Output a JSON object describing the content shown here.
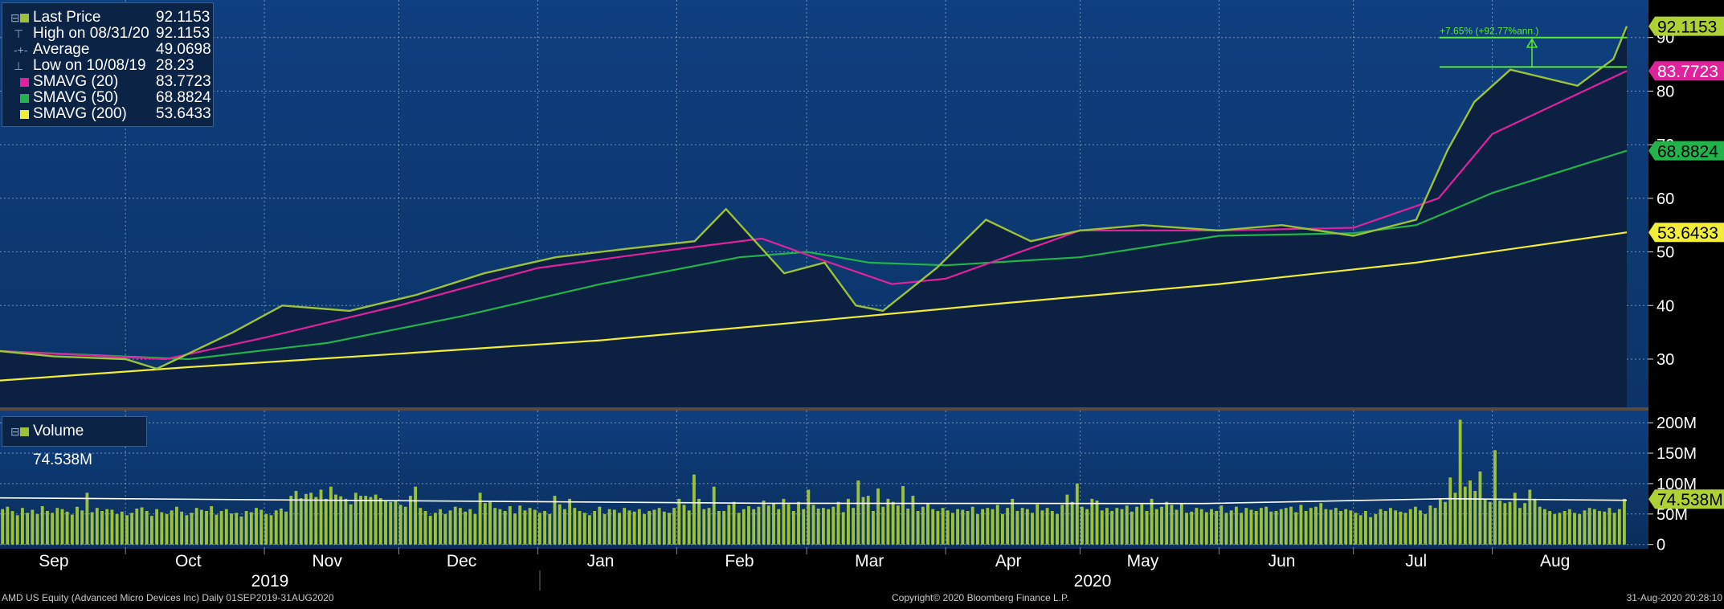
{
  "legend": {
    "items": [
      {
        "label": "Last Price",
        "value": "92.1153",
        "color": "#9cc23a",
        "marker": "box"
      },
      {
        "label": "High on 08/31/20",
        "value": "92.1153",
        "color": "",
        "marker": "high"
      },
      {
        "label": "Average",
        "value": "49.0698",
        "color": "",
        "marker": "avg"
      },
      {
        "label": "Low on 10/08/19",
        "value": "28.23",
        "color": "",
        "marker": "low"
      },
      {
        "label": "SMAVG (20)",
        "value": "83.7723",
        "color": "#e0239c",
        "marker": "box"
      },
      {
        "label": "SMAVG (50)",
        "value": "68.8824",
        "color": "#22b34a",
        "marker": "box"
      },
      {
        "label": "SMAVG (200)",
        "value": "53.6433",
        "color": "#f2ec3a",
        "marker": "box"
      }
    ]
  },
  "volume_legend": {
    "label": "Volume",
    "value": "74.538M"
  },
  "annotation": "+7.65% (+92.77%ann.)",
  "footer": {
    "left": "AMD US Equity (Advanced Micro Devices Inc)  Daily 01SEP2019-31AUG2020",
    "center": "Copyright© 2020 Bloomberg Finance L.P.",
    "right": "31-Aug-2020 20:28:10"
  },
  "colors": {
    "last": "#9cc23a",
    "sma20": "#e0239c",
    "sma50": "#22b34a",
    "sma200": "#f2ec3a",
    "volume": "#9cc23a",
    "volume_avg": "#ffffff"
  },
  "chart_data": [
    {
      "type": "line",
      "ylim": [
        21,
        97
      ],
      "y_ticks": [
        30,
        40,
        50,
        60,
        70,
        80,
        90
      ],
      "x_months": [
        "Sep",
        "Oct",
        "Nov",
        "Dec",
        "Jan",
        "Feb",
        "Mar",
        "Apr",
        "May",
        "Jun",
        "Jul",
        "Aug"
      ],
      "years": [
        "2019",
        "2020"
      ],
      "tag_values": [
        "92.1153",
        "83.7723",
        "68.8824",
        "53.6433"
      ],
      "series": [
        {
          "name": "Last Price",
          "x": [
            "2019-09-03",
            "2019-09-15",
            "2019-10-01",
            "2019-10-08",
            "2019-10-25",
            "2019-11-05",
            "2019-11-20",
            "2019-12-05",
            "2019-12-20",
            "2020-01-05",
            "2020-01-20",
            "2020-02-05",
            "2020-02-12",
            "2020-02-25",
            "2020-03-05",
            "2020-03-12",
            "2020-03-18",
            "2020-03-30",
            "2020-04-10",
            "2020-04-20",
            "2020-05-01",
            "2020-05-15",
            "2020-06-01",
            "2020-06-15",
            "2020-07-01",
            "2020-07-15",
            "2020-07-22",
            "2020-07-28",
            "2020-08-05",
            "2020-08-20",
            "2020-08-28",
            "2020-08-31"
          ],
          "y": [
            31.5,
            30.5,
            30.0,
            28.2,
            35.0,
            40.0,
            39.0,
            42.0,
            46.0,
            49.0,
            50.5,
            52.0,
            58.0,
            46.0,
            48.0,
            40.0,
            39.0,
            47.0,
            56.0,
            52.0,
            54.0,
            55.0,
            54.0,
            55.0,
            53.0,
            56.0,
            69.0,
            78.0,
            84.0,
            81.0,
            86.0,
            92.1153
          ]
        },
        {
          "name": "SMAVG (20)",
          "x": [
            "2019-09-03",
            "2019-10-10",
            "2019-11-01",
            "2019-12-01",
            "2020-01-01",
            "2020-02-01",
            "2020-02-20",
            "2020-03-01",
            "2020-03-20",
            "2020-04-01",
            "2020-05-01",
            "2020-06-01",
            "2020-07-01",
            "2020-07-20",
            "2020-08-01",
            "2020-08-31"
          ],
          "y": [
            31.5,
            30.0,
            34.0,
            40.0,
            47.0,
            50.5,
            52.5,
            49.5,
            44.0,
            45.0,
            54.0,
            54.0,
            54.5,
            60.0,
            72.0,
            83.7723
          ]
        },
        {
          "name": "SMAVG (50)",
          "x": [
            "2019-09-03",
            "2019-10-15",
            "2019-11-15",
            "2019-12-15",
            "2020-01-15",
            "2020-02-15",
            "2020-03-01",
            "2020-03-15",
            "2020-04-01",
            "2020-05-01",
            "2020-06-01",
            "2020-07-01",
            "2020-07-15",
            "2020-08-01",
            "2020-08-31"
          ],
          "y": [
            31.5,
            30.0,
            33.0,
            38.0,
            44.0,
            49.0,
            50.0,
            48.0,
            47.5,
            49.0,
            53.0,
            53.5,
            55.0,
            61.0,
            68.8824
          ]
        },
        {
          "name": "SMAVG (200)",
          "x": [
            "2019-09-03",
            "2019-10-15",
            "2019-12-01",
            "2020-01-15",
            "2020-03-01",
            "2020-04-15",
            "2020-06-01",
            "2020-07-15",
            "2020-08-31"
          ],
          "y": [
            26.0,
            28.5,
            31.0,
            33.5,
            37.0,
            40.5,
            44.0,
            48.0,
            53.6433
          ]
        }
      ]
    },
    {
      "type": "bar",
      "ylim": [
        -7,
        220
      ],
      "y_tick_labels": [
        "0",
        "50M",
        "100M",
        "150M",
        "200M"
      ],
      "y_tick_values": [
        0,
        50,
        100,
        150,
        200
      ],
      "unit": "M",
      "average_value_m": 70,
      "series": [
        {
          "name": "Volume",
          "x_start": "2019-09-03",
          "x_end": "2020-08-31",
          "values": [
            58,
            62,
            55,
            48,
            60,
            52,
            57,
            50,
            63,
            55,
            52,
            60,
            58,
            54,
            49,
            62,
            56,
            85,
            53,
            60,
            55,
            58,
            57,
            50,
            54,
            48,
            52,
            59,
            61,
            55,
            47,
            58,
            53,
            50,
            56,
            62,
            54,
            48,
            52,
            60,
            57,
            55,
            63,
            49,
            55,
            58,
            51,
            52,
            46,
            55,
            53,
            60,
            57,
            50,
            48,
            56,
            59,
            54,
            80,
            88,
            76,
            83,
            85,
            78,
            90,
            75,
            95,
            82,
            79,
            75,
            66,
            85,
            80,
            80,
            78,
            82,
            76,
            71,
            70,
            73,
            65,
            62,
            80,
            95,
            60,
            55,
            47,
            52,
            58,
            50,
            56,
            62,
            60,
            54,
            58,
            50,
            85,
            68,
            70,
            60,
            58,
            55,
            63,
            51,
            64,
            56,
            60,
            57,
            52,
            55,
            50,
            80,
            66,
            58,
            75,
            60,
            55,
            52,
            48,
            55,
            62,
            50,
            58,
            57,
            52,
            60,
            56,
            54,
            58,
            50,
            55,
            57,
            60,
            54,
            52,
            60,
            75,
            65,
            56,
            115,
            75,
            58,
            60,
            95,
            55,
            55,
            65,
            70,
            52,
            58,
            63,
            58,
            62,
            72,
            64,
            68,
            58,
            75,
            66,
            55,
            70,
            58,
            90,
            65,
            59,
            60,
            58,
            62,
            70,
            53,
            75,
            60,
            105,
            78,
            80,
            55,
            92,
            62,
            75,
            70,
            64,
            96,
            59,
            80,
            55,
            62,
            68,
            58,
            55,
            60,
            56,
            52,
            58,
            57,
            55,
            62,
            50,
            58,
            60,
            58,
            65,
            50,
            60,
            75,
            55,
            60,
            58,
            52,
            66,
            56,
            60,
            55,
            50,
            65,
            82,
            70,
            100,
            62,
            58,
            75,
            72,
            56,
            60,
            55,
            60,
            58,
            64,
            54,
            62,
            66,
            55,
            75,
            58,
            62,
            70,
            65,
            57,
            68,
            52,
            54,
            60,
            58,
            53,
            58,
            55,
            64,
            52,
            56,
            62,
            52,
            60,
            57,
            55,
            60,
            62,
            54,
            55,
            58,
            60,
            62,
            53,
            65,
            55,
            60,
            62,
            68,
            58,
            57,
            60,
            55,
            58,
            56,
            52,
            48,
            55,
            45,
            50,
            58,
            55,
            60,
            56,
            54,
            52,
            58,
            62,
            56,
            50,
            64,
            60,
            75,
            70,
            110,
            85,
            205,
            95,
            105,
            88,
            120,
            75,
            70,
            155,
            72,
            68,
            70,
            85,
            60,
            68,
            90,
            75,
            62,
            58,
            55,
            50,
            52,
            55,
            58,
            52,
            50,
            56,
            60,
            58,
            55,
            54,
            60,
            52,
            58,
            75
          ]
        }
      ]
    }
  ]
}
